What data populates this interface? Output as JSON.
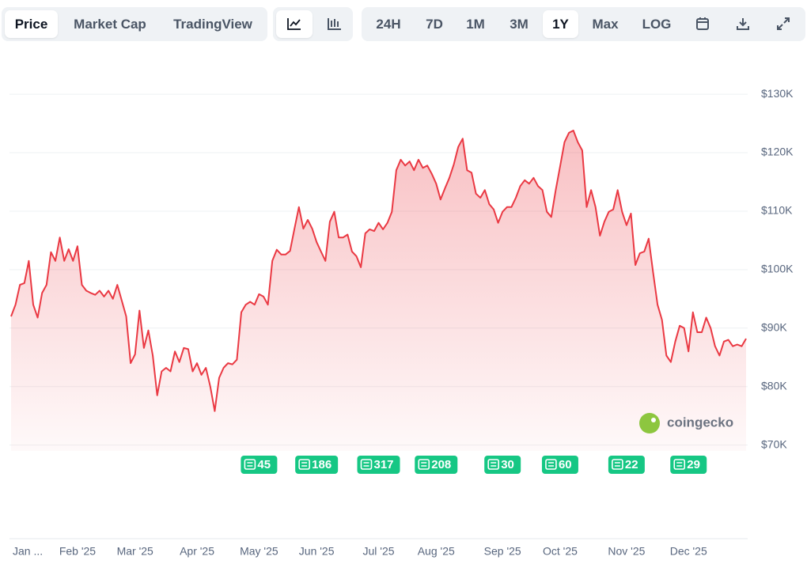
{
  "toolbar": {
    "views": [
      "Price",
      "Market Cap",
      "TradingView"
    ],
    "ranges": [
      "24H",
      "7D",
      "1M",
      "3M",
      "1Y",
      "Max",
      "LOG"
    ]
  },
  "chart_data": {
    "type": "line",
    "color": "#ea3943",
    "categories": [
      "Jan ...",
      null,
      null,
      null,
      null,
      null,
      null,
      null,
      null,
      null,
      null,
      null,
      null,
      null,
      null,
      "Feb '25",
      null,
      null,
      null,
      null,
      null,
      null,
      null,
      null,
      null,
      null,
      null,
      null,
      "Mar '25",
      null,
      null,
      null,
      null,
      null,
      null,
      null,
      null,
      null,
      null,
      null,
      null,
      null,
      "Apr '25",
      null,
      null,
      null,
      null,
      null,
      null,
      null,
      null,
      null,
      null,
      null,
      null,
      null,
      "May '25",
      null,
      null,
      null,
      null,
      null,
      null,
      null,
      null,
      null,
      null,
      null,
      null,
      "Jun '25",
      null,
      null,
      null,
      null,
      null,
      null,
      null,
      null,
      null,
      null,
      null,
      null,
      null,
      "Jul '25",
      null,
      null,
      null,
      null,
      null,
      null,
      null,
      null,
      null,
      null,
      null,
      null,
      "Aug '25",
      null,
      null,
      null,
      null,
      null,
      null,
      null,
      null,
      null,
      null,
      null,
      null,
      null,
      null,
      "Sep '25",
      null,
      null,
      null,
      null,
      null,
      null,
      null,
      null,
      null,
      null,
      null,
      null,
      "Oct '25",
      null,
      null,
      null,
      null,
      null,
      null,
      null,
      null,
      null,
      null,
      null,
      null,
      null,
      null,
      "Nov '25",
      null,
      null,
      null,
      null,
      null,
      null,
      null,
      null,
      null,
      null,
      null,
      null,
      null,
      "Dec '25",
      null,
      null,
      null,
      null,
      null,
      null,
      null,
      null,
      null,
      null,
      null,
      null,
      null
    ],
    "values": [
      92000,
      94000,
      97400,
      97700,
      101500,
      94000,
      91800,
      96000,
      97400,
      103000,
      101500,
      105500,
      101500,
      103500,
      101500,
      104000,
      97400,
      96400,
      96000,
      95700,
      96400,
      95400,
      96400,
      95000,
      97400,
      94700,
      92000,
      84000,
      85500,
      93000,
      86600,
      89600,
      85300,
      78500,
      82600,
      83200,
      82600,
      86000,
      84200,
      86600,
      86400,
      82600,
      84000,
      82000,
      83200,
      80000,
      75800,
      81500,
      83200,
      84000,
      83800,
      84600,
      92700,
      94000,
      94500,
      94000,
      95800,
      95400,
      94000,
      101500,
      103400,
      102600,
      102600,
      103200,
      107000,
      110700,
      107000,
      108500,
      107000,
      104700,
      103100,
      101500,
      108200,
      109900,
      105500,
      105500,
      106000,
      103100,
      102300,
      100400,
      106200,
      106900,
      106600,
      108000,
      106900,
      108000,
      109900,
      117000,
      118800,
      117800,
      118500,
      117000,
      118800,
      117400,
      117800,
      116400,
      114700,
      112000,
      113900,
      115700,
      118000,
      121000,
      122400,
      117000,
      116600,
      113000,
      112300,
      113600,
      111200,
      110300,
      108000,
      109900,
      110700,
      110700,
      112300,
      114300,
      115300,
      114700,
      115700,
      114300,
      113600,
      109900,
      109000,
      113600,
      117700,
      121800,
      123400,
      123800,
      121800,
      120400,
      110700,
      113600,
      110700,
      105800,
      108200,
      109900,
      110300,
      113600,
      109900,
      107600,
      109600,
      100800,
      102800,
      103100,
      105300,
      99500,
      94000,
      91400,
      85300,
      84200,
      87700,
      90400,
      90000,
      86000,
      92700,
      89300,
      89300,
      91800,
      90000,
      86900,
      85300,
      87700,
      88000,
      86900,
      87200,
      86900,
      88200
    ],
    "ylim": [
      69000,
      138000
    ],
    "yticks": [
      {
        "value": 70000,
        "label": "$70K"
      },
      {
        "value": 80000,
        "label": "$80K"
      },
      {
        "value": 90000,
        "label": "$90K"
      },
      {
        "value": 100000,
        "label": "$100K"
      },
      {
        "value": 110000,
        "label": "$110K"
      },
      {
        "value": 120000,
        "label": "$120K"
      },
      {
        "value": 130000,
        "label": "$130K"
      }
    ],
    "grid": true,
    "news": [
      45,
      186,
      317,
      208,
      30,
      60,
      22,
      29
    ],
    "watermark": "coingecko"
  }
}
